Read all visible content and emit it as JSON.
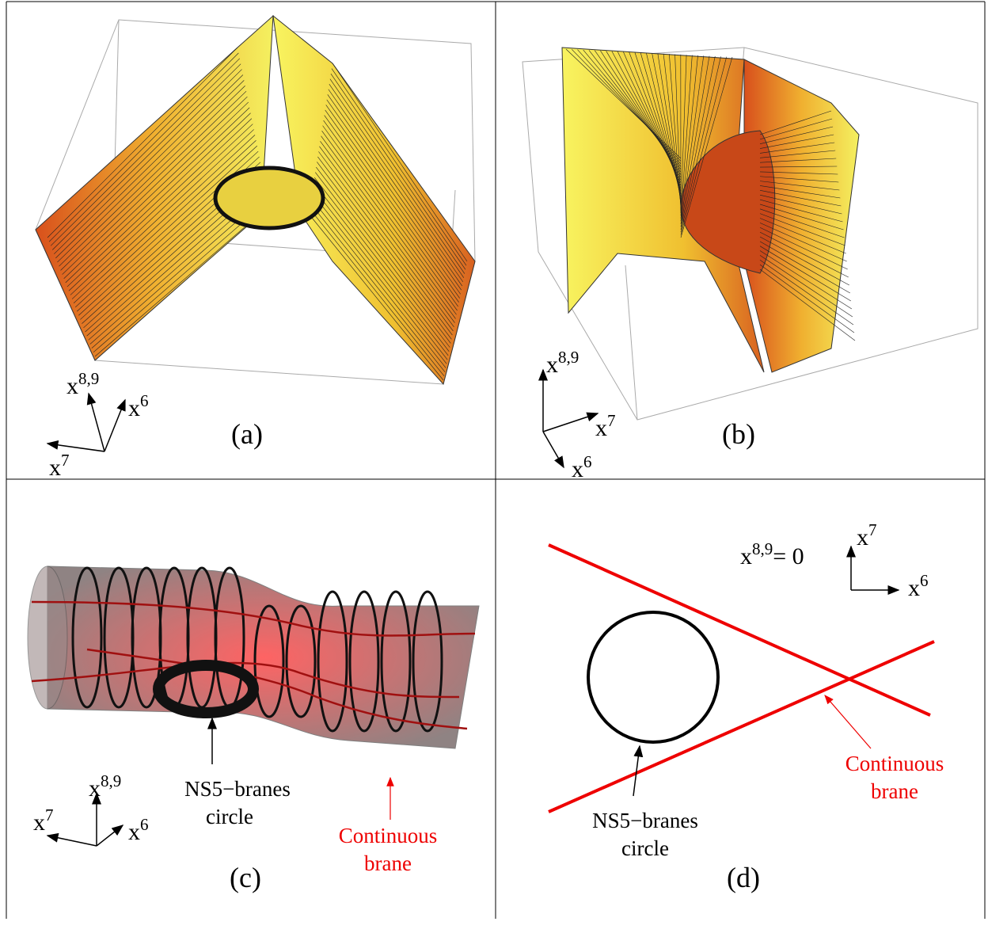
{
  "panels": [
    {
      "label": "(a)",
      "axes": [
        {
          "base": "x",
          "sup": "8,9"
        },
        {
          "base": "x",
          "sup": "6"
        },
        {
          "base": "x",
          "sup": "7"
        }
      ]
    },
    {
      "label": "(b)",
      "axes": [
        {
          "base": "x",
          "sup": "8,9"
        },
        {
          "base": "x",
          "sup": "7"
        },
        {
          "base": "x",
          "sup": "6"
        }
      ]
    },
    {
      "label": "(c)",
      "axes": [
        {
          "base": "x",
          "sup": "8,9"
        },
        {
          "base": "x",
          "sup": "7"
        },
        {
          "base": "x",
          "sup": "6"
        }
      ],
      "annotations": [
        {
          "lines": [
            "NS5−branes",
            "circle"
          ]
        },
        {
          "lines": [
            "Continuous",
            "brane"
          ]
        }
      ]
    },
    {
      "label": "(d)",
      "equation": {
        "base": "x",
        "sup": "8,9",
        "rest": "= 0"
      },
      "axes": [
        {
          "base": "x",
          "sup": "7"
        },
        {
          "base": "x",
          "sup": "6"
        }
      ],
      "annotations": [
        {
          "lines": [
            "NS5−branes",
            "circle"
          ]
        },
        {
          "lines": [
            "Continuous",
            "brane"
          ]
        }
      ]
    }
  ]
}
